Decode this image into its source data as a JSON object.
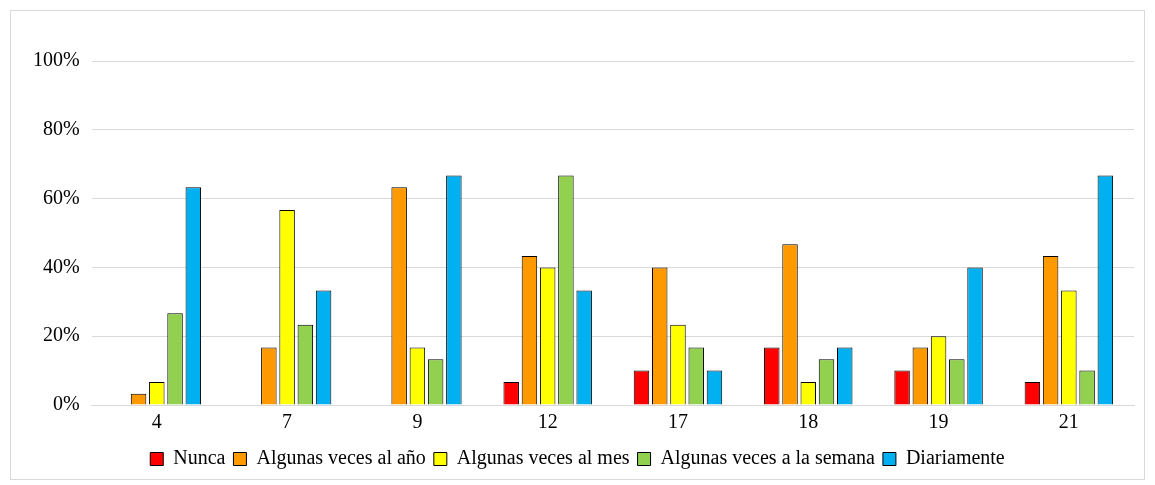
{
  "chart_data": {
    "type": "bar",
    "categories": [
      "4",
      "7",
      "9",
      "12",
      "17",
      "18",
      "19",
      "21"
    ],
    "series": [
      {
        "name": "Nunca",
        "color": "#ff0000",
        "values": [
          0,
          0,
          0,
          6.7,
          10,
          16.7,
          10,
          6.7
        ]
      },
      {
        "name": "Algunas veces al año",
        "color": "#ff9900",
        "values": [
          3.3,
          16.7,
          63.3,
          43.3,
          40,
          46.7,
          16.7,
          43.3
        ]
      },
      {
        "name": "Algunas veces al mes",
        "color": "#ffff00",
        "values": [
          6.7,
          56.7,
          16.7,
          40,
          23.3,
          6.7,
          20,
          33.3
        ]
      },
      {
        "name": "Algunas veces a la semana",
        "color": "#92d050",
        "values": [
          26.7,
          23.3,
          13.3,
          66.7,
          16.7,
          13.3,
          13.3,
          10
        ]
      },
      {
        "name": "Diariamente",
        "color": "#00b0f0",
        "values": [
          63.3,
          33.3,
          66.7,
          33.3,
          10,
          16.7,
          40,
          66.7
        ]
      }
    ],
    "ylim": [
      0,
      100
    ],
    "yticks": [
      {
        "value": 0,
        "label": "0%"
      },
      {
        "value": 20,
        "label": "20%"
      },
      {
        "value": 40,
        "label": "40%"
      },
      {
        "value": 60,
        "label": "60%"
      },
      {
        "value": 80,
        "label": "80%"
      },
      {
        "value": 100,
        "label": "100%"
      }
    ],
    "grid": "y",
    "legend": "bottom"
  }
}
